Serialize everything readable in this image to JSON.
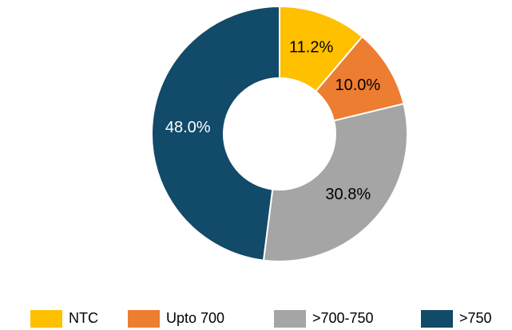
{
  "chart_data": {
    "type": "donut",
    "categories": [
      "NTC",
      "Upto 700",
      ">700-750",
      ">750"
    ],
    "values": [
      11.2,
      10.0,
      30.8,
      48.0
    ],
    "value_labels": [
      "11.2%",
      "10.0%",
      "30.8%",
      "48.0%"
    ],
    "colors": [
      "#ffc000",
      "#ed7d31",
      "#a5a5a5",
      "#124a69"
    ],
    "label_colors": [
      "#000000",
      "#000000",
      "#000000",
      "#ffffff"
    ],
    "legend": "bottom"
  }
}
